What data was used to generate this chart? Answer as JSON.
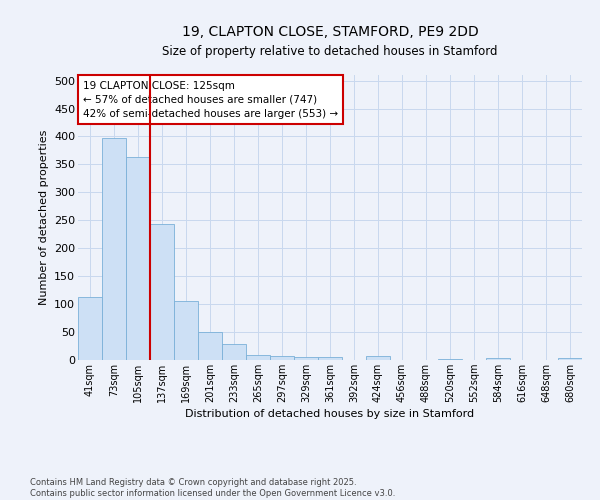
{
  "title_line1": "19, CLAPTON CLOSE, STAMFORD, PE9 2DD",
  "title_line2": "Size of property relative to detached houses in Stamford",
  "xlabel": "Distribution of detached houses by size in Stamford",
  "ylabel": "Number of detached properties",
  "categories": [
    "41sqm",
    "73sqm",
    "105sqm",
    "137sqm",
    "169sqm",
    "201sqm",
    "233sqm",
    "265sqm",
    "297sqm",
    "329sqm",
    "361sqm",
    "392sqm",
    "424sqm",
    "456sqm",
    "488sqm",
    "520sqm",
    "552sqm",
    "584sqm",
    "616sqm",
    "648sqm",
    "680sqm"
  ],
  "values": [
    112,
    397,
    363,
    243,
    105,
    50,
    28,
    9,
    8,
    6,
    6,
    0,
    7,
    0,
    0,
    2,
    0,
    3,
    0,
    0,
    4
  ],
  "bar_color": "#cde0f5",
  "bar_edge_color": "#7ab0d8",
  "vline_x": 2.5,
  "vline_color": "#cc0000",
  "annotation_line1": "19 CLAPTON CLOSE: 125sqm",
  "annotation_line2": "← 57% of detached houses are smaller (747)",
  "annotation_line3": "42% of semi-detached houses are larger (553) →",
  "annotation_box_color": "#ffffff",
  "annotation_box_edge": "#cc0000",
  "ylim": [
    0,
    510
  ],
  "yticks": [
    0,
    50,
    100,
    150,
    200,
    250,
    300,
    350,
    400,
    450,
    500
  ],
  "grid_color": "#c8d8ee",
  "footnote": "Contains HM Land Registry data © Crown copyright and database right 2025.\nContains public sector information licensed under the Open Government Licence v3.0.",
  "bg_color": "#eef2fa"
}
